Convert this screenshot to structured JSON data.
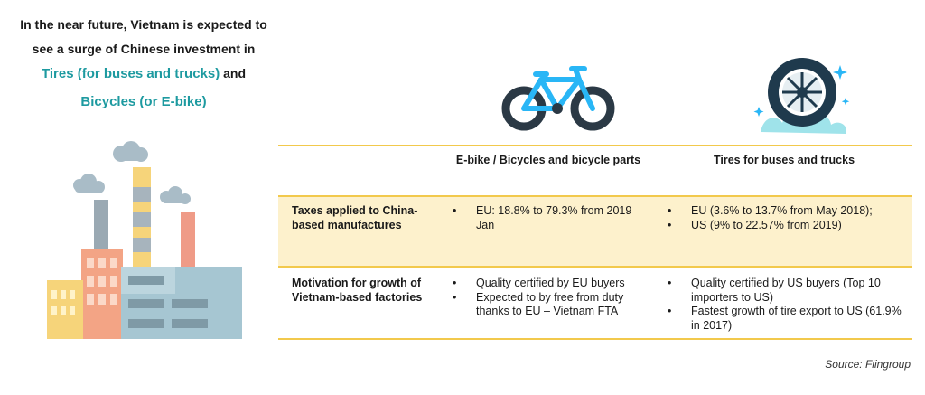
{
  "headline": {
    "line1": "In the near future, Vietnam is expected to",
    "line2": "see a surge of Chinese investment in",
    "highlight1": "Tires (for buses and trucks)",
    "connector": " and",
    "highlight2": "Bicycles (or E-bike)"
  },
  "colors": {
    "highlight_text": "#1d9aa0",
    "table_rule": "#f2c94c",
    "row_shade": "#fdf1cc",
    "bike": "#29b6f6",
    "tire": "#1f3a4d"
  },
  "illustrations": {
    "factory": "factory-icon",
    "bicycle": "bicycle-icon",
    "tire": "tire-icon"
  },
  "table": {
    "columns": [
      "",
      "E-bike / Bicycles and bicycle parts",
      "Tires for buses and trucks"
    ],
    "rows": [
      {
        "label": "Taxes applied to China-based manufactures",
        "bicycle": [
          "EU: 18.8% to 79.3% from 2019 Jan"
        ],
        "tires": [
          "EU (3.6% to 13.7% from May 2018);",
          "US (9% to 22.57% from 2019)"
        ]
      },
      {
        "label": "Motivation for growth of Vietnam-based factories",
        "bicycle": [
          "Quality certified by EU buyers",
          "Expected to by free from duty thanks to EU – Vietnam FTA"
        ],
        "tires": [
          "Quality certified by US buyers (Top 10 importers to US)",
          "Fastest growth of tire export to US (61.9% in 2017)"
        ]
      }
    ]
  },
  "source": "Source: Fiingroup"
}
